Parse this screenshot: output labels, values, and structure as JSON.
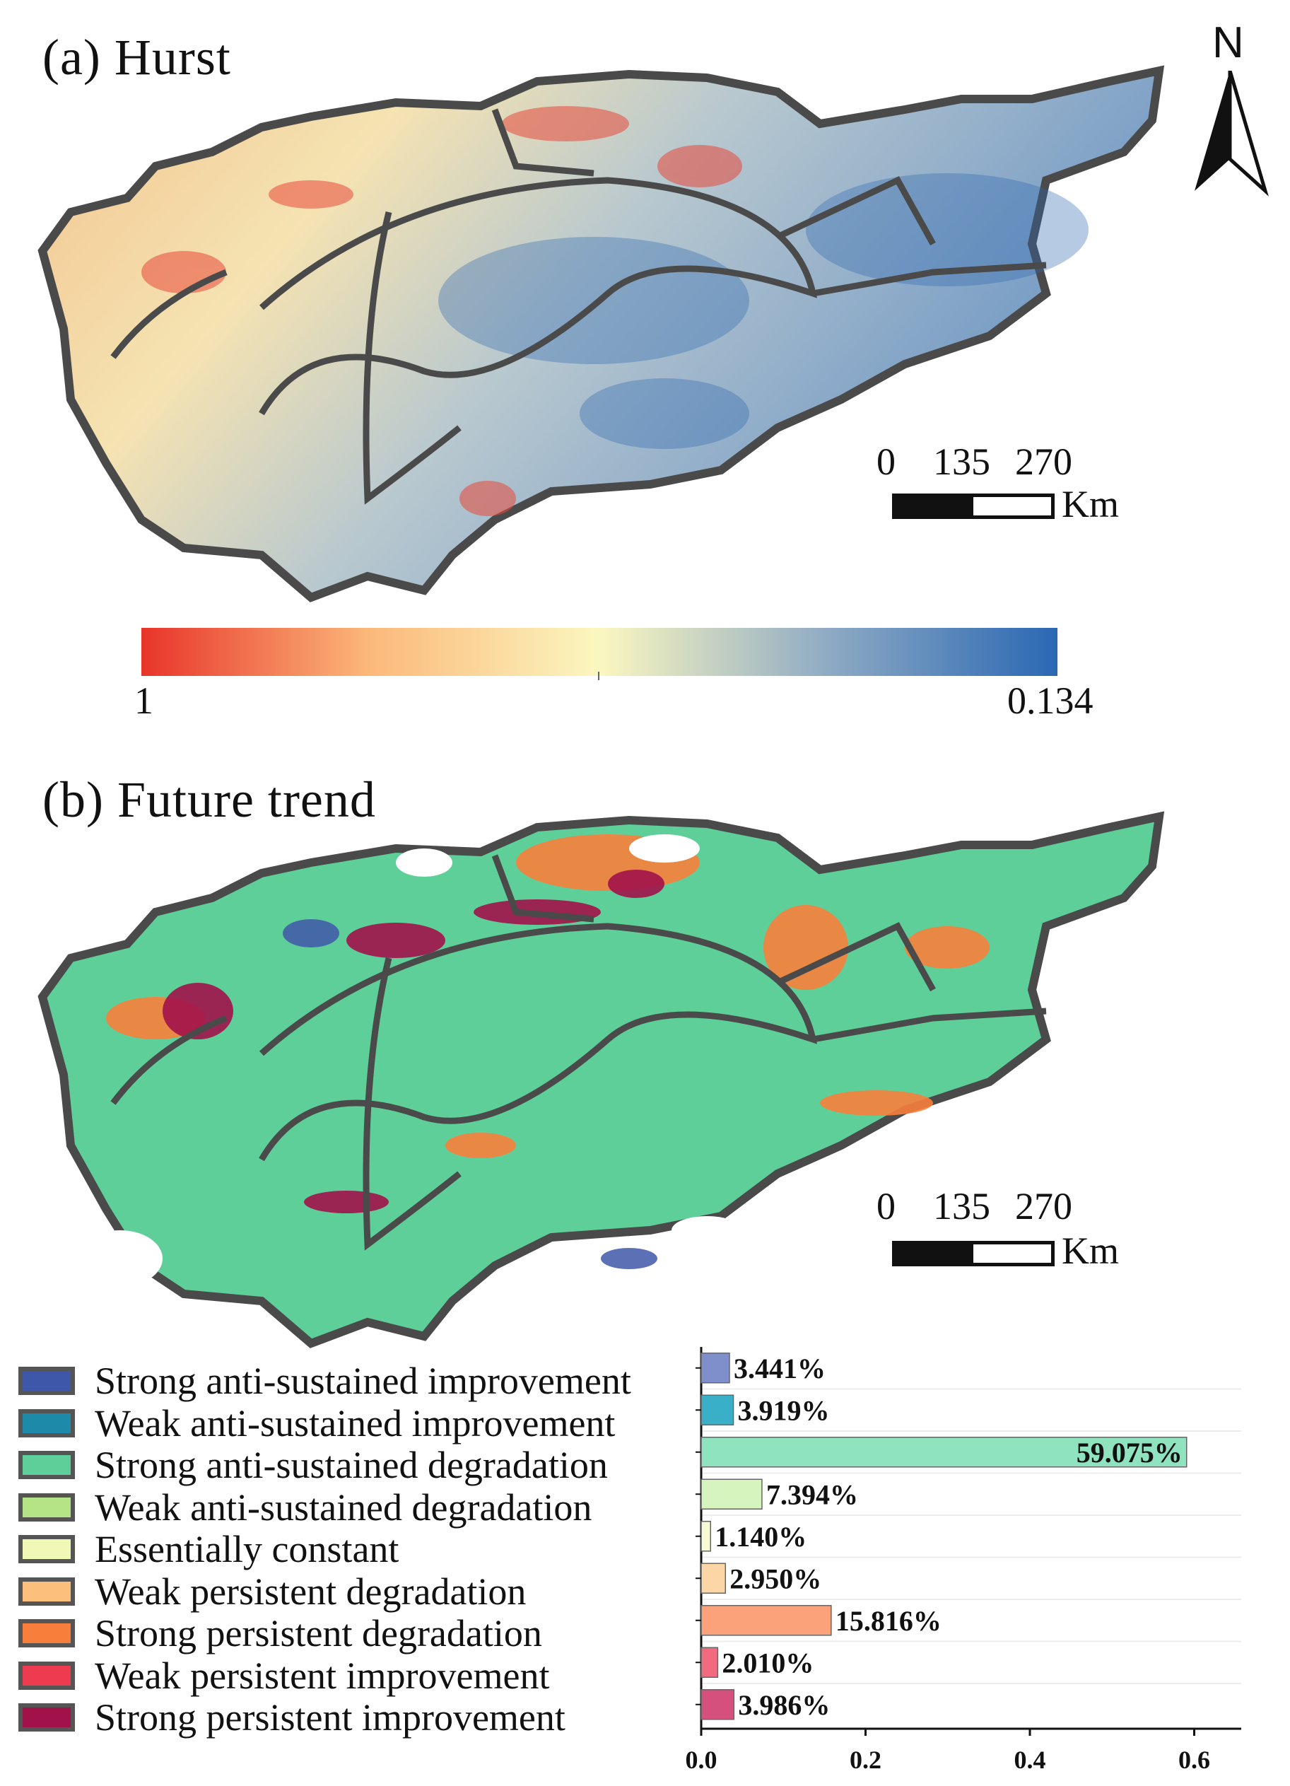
{
  "panel_a": {
    "title": "(a) Hurst",
    "north_label": "N",
    "scale": {
      "ticks": [
        "0",
        "135",
        "270"
      ],
      "unit": "Km"
    },
    "colorbar": {
      "left_label": "1",
      "right_label": "0.134",
      "colors": [
        "#e8342a",
        "#fbb97a",
        "#fbf7c0",
        "#8eaac4",
        "#2a67b3"
      ]
    }
  },
  "panel_b": {
    "title": "(b) Future trend",
    "scale": {
      "ticks": [
        "0",
        "135",
        "270"
      ],
      "unit": "Km"
    }
  },
  "legend": {
    "items": [
      {
        "label": "Strong anti-sustained improvement",
        "color": "#3f57a8"
      },
      {
        "label": "Weak anti-sustained improvement",
        "color": "#1c8aa8"
      },
      {
        "label": "Strong anti-sustained degradation",
        "color": "#5fcf9a"
      },
      {
        "label": "Weak anti-sustained degradation",
        "color": "#b4e486"
      },
      {
        "label": "Essentially constant",
        "color": "#f1f7b4"
      },
      {
        "label": "Weak  persistent degradation",
        "color": "#fcc07c"
      },
      {
        "label": "Strong persistent degradation",
        "color": "#f87e3c"
      },
      {
        "label": "Weak persistent improvement",
        "color": "#ee3b50"
      },
      {
        "label": "Strong persistent improvement",
        "color": "#a2124a"
      }
    ]
  },
  "chart_data": {
    "type": "bar",
    "orientation": "horizontal",
    "categories": [
      "Strong anti-sustained improvement",
      "Weak anti-sustained improvement",
      "Strong anti-sustained degradation",
      "Weak anti-sustained degradation",
      "Essentially constant",
      "Weak  persistent degradation",
      "Strong persistent degradation",
      "Weak persistent improvement",
      "Strong persistent improvement"
    ],
    "values": [
      0.03441,
      0.03919,
      0.59075,
      0.07394,
      0.0114,
      0.0295,
      0.15816,
      0.0201,
      0.03986
    ],
    "value_labels": [
      "3.441%",
      "3.919%",
      "59.075%",
      "7.394%",
      "1.140%",
      "2.950%",
      "15.816%",
      "2.010%",
      "3.986%"
    ],
    "bar_colors": [
      "#7f8fcc",
      "#3ab0c8",
      "#8fe3be",
      "#d6f4bd",
      "#f8fbd6",
      "#fdd6a6",
      "#fba27a",
      "#f36a7e",
      "#d6507e"
    ],
    "xlim": [
      0,
      0.64
    ],
    "xticks": [
      "0.0",
      "0.2",
      "0.4",
      "0.6"
    ],
    "xtick_values": [
      0,
      0.2,
      0.4,
      0.6
    ]
  }
}
